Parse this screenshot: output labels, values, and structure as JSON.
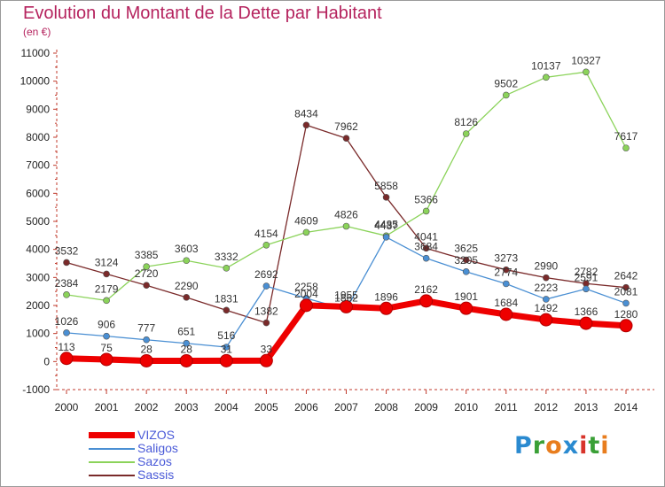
{
  "header": {
    "title": "Evolution du Montant de la Dette par Habitant",
    "subtitle": "(en €)"
  },
  "brand": {
    "text": "Proxiti",
    "colors": [
      "#2a8ad0",
      "#3aa037",
      "#e87d1e",
      "#2a8ad0",
      "#d8342b",
      "#3aa037",
      "#e87d1e"
    ]
  },
  "chart_data": {
    "type": "line",
    "title": "Evolution du Montant de la Dette par Habitant",
    "subtitle": "(en €)",
    "x": [
      2000,
      2001,
      2002,
      2003,
      2004,
      2005,
      2006,
      2007,
      2008,
      2009,
      2010,
      2011,
      2012,
      2013,
      2014
    ],
    "ylim": [
      -1000,
      11000
    ],
    "yticks": [
      -1000,
      0,
      1000,
      2000,
      3000,
      4000,
      5000,
      6000,
      7000,
      8000,
      9000,
      10000,
      11000
    ],
    "grid": false,
    "legend_position": "bottom-left",
    "series": [
      {
        "name": "VIZOS",
        "color": "#ee0000",
        "values": [
          113,
          75,
          28,
          28,
          31,
          33,
          2004,
          1955,
          1896,
          2162,
          1901,
          1684,
          1492,
          1366,
          1280
        ],
        "labels": [
          "113",
          "75",
          "28",
          "28",
          "31",
          "33",
          "2004",
          "1955",
          "1896",
          "2162",
          "1901",
          "1684",
          "1492",
          "1366",
          "1280"
        ]
      },
      {
        "name": "Saligos",
        "color": "#4a8fd3",
        "values": [
          1026,
          906,
          777,
          651,
          516,
          2692,
          2258,
          1862,
          4437,
          3684,
          3205,
          2774,
          2223,
          2591,
          2081
        ],
        "labels": [
          "1026",
          "906",
          "777",
          "651",
          "516",
          "2692",
          "2258",
          "1862",
          "4437",
          "3684",
          "3205",
          "2774",
          "2223",
          "2591",
          "2081"
        ]
      },
      {
        "name": "Sazos",
        "color": "#8bd35a",
        "values": [
          2384,
          2179,
          3385,
          3603,
          3332,
          4154,
          4609,
          4826,
          4485,
          5366,
          8126,
          9502,
          10137,
          10327,
          7617
        ],
        "labels": [
          "2384",
          "2179",
          "3385",
          "3603",
          "3332",
          "4154",
          "4609",
          "4826",
          "4485",
          "5366",
          "8126",
          "9502",
          "10137",
          "10327",
          "7617"
        ]
      },
      {
        "name": "Sassis",
        "color": "#7a2a2a",
        "values": [
          3532,
          3124,
          2720,
          2290,
          1831,
          1382,
          8434,
          7962,
          5858,
          4041,
          3625,
          3273,
          2990,
          2782,
          2642
        ],
        "labels": [
          "3532",
          "3124",
          "2720",
          "2290",
          "1831",
          "1382",
          "8434",
          "7962",
          "5858",
          "4041",
          "3625",
          "3273",
          "2990",
          "2782",
          "2642"
        ]
      }
    ]
  }
}
